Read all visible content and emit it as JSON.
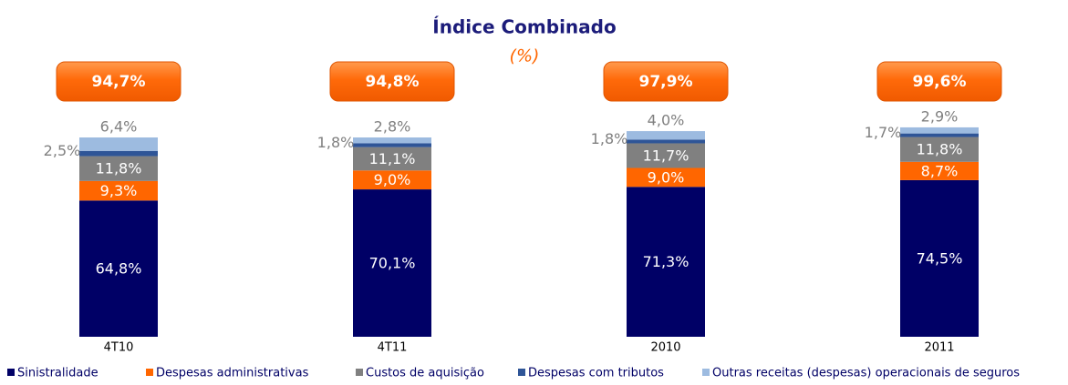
{
  "chart_data": {
    "type": "stacked-bar",
    "title": "Índice Combinado",
    "subtitle": "(%)",
    "categories": [
      "4T10",
      "4T11",
      "2010",
      "2011"
    ],
    "totals": [
      94.7,
      94.8,
      97.9,
      99.6
    ],
    "total_labels": [
      "94,7%",
      "94,8%",
      "97,9%",
      "99,6%"
    ],
    "series": [
      {
        "name": "Sinistralidade",
        "color": "#000066",
        "values": [
          64.8,
          70.1,
          71.3,
          74.5
        ],
        "value_labels": [
          "64,8%",
          "70,1%",
          "71,3%",
          "74,5%"
        ]
      },
      {
        "name": "Despesas administrativas",
        "color": "#ff6600",
        "values": [
          9.3,
          9.0,
          9.0,
          8.7
        ],
        "value_labels": [
          "9,3%",
          "9,0%",
          "9,0%",
          "8,7%"
        ]
      },
      {
        "name": "Custos de aquisição",
        "color": "#808080",
        "values": [
          11.8,
          11.1,
          11.7,
          11.8
        ],
        "value_labels": [
          "11,8%",
          "11,1%",
          "11,7%",
          "11,8%"
        ]
      },
      {
        "name": "Despesas com tributos",
        "color": "#2f5597",
        "values": [
          2.5,
          1.8,
          1.8,
          1.7
        ],
        "value_labels": [
          "2,5%",
          "1,8%",
          "1,8%",
          "1,7%"
        ]
      },
      {
        "name": "Outras receitas (despesas) operacionais de seguros",
        "color": "#9dbbe0",
        "values": [
          6.4,
          2.8,
          4.0,
          2.9
        ],
        "value_labels": [
          "6,4%",
          "2,8%",
          "4,0%",
          "2,9%"
        ]
      }
    ]
  }
}
